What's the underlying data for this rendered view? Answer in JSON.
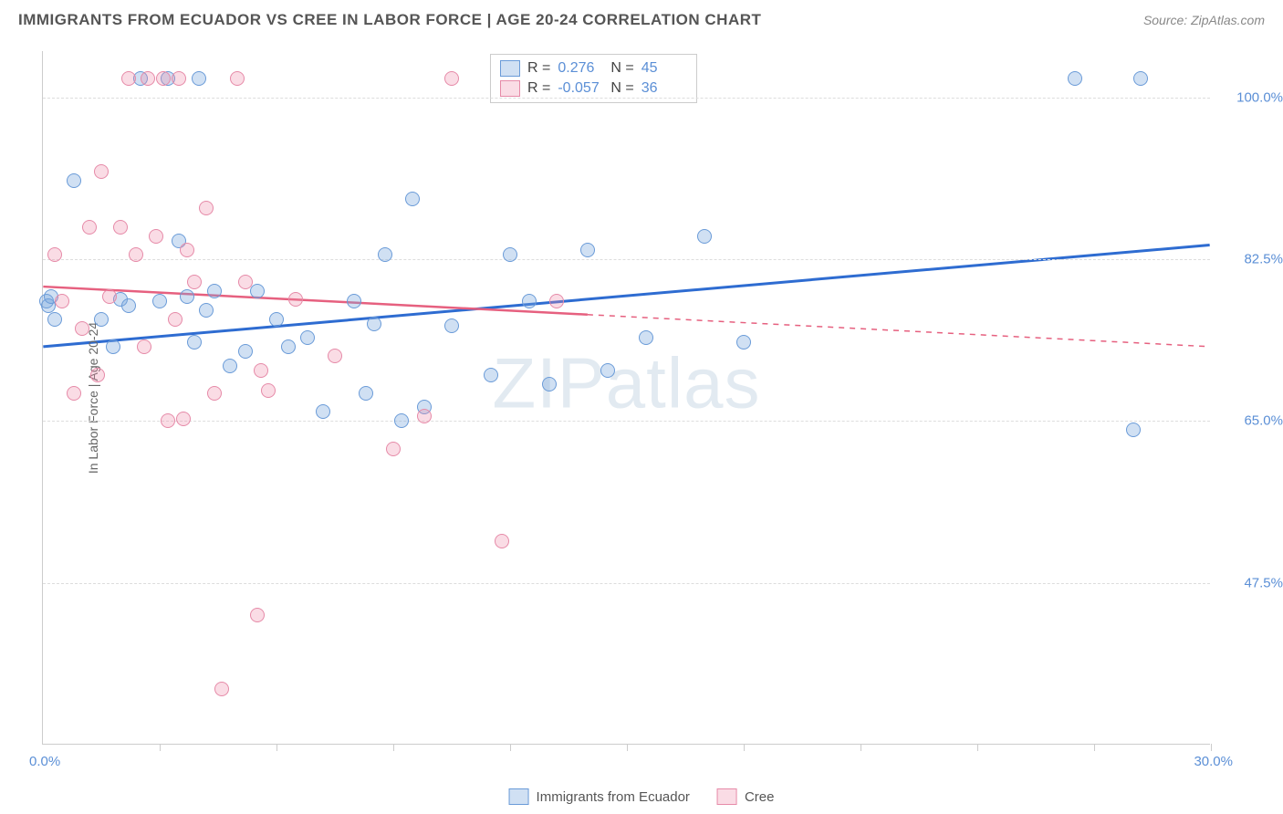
{
  "title": "IMMIGRANTS FROM ECUADOR VS CREE IN LABOR FORCE | AGE 20-24 CORRELATION CHART",
  "source": "Source: ZipAtlas.com",
  "watermark": "ZIPatlas",
  "y_axis_label": "In Labor Force | Age 20-24",
  "chart": {
    "type": "scatter",
    "background_color": "#ffffff",
    "grid_color": "#dddddd",
    "axis_color": "#cccccc",
    "xlim": [
      0,
      30
    ],
    "ylim": [
      30,
      105
    ],
    "x_min_label": "0.0%",
    "x_max_label": "30.0%",
    "y_ticks": [
      {
        "value": 47.5,
        "label": "47.5%"
      },
      {
        "value": 65.0,
        "label": "65.0%"
      },
      {
        "value": 82.5,
        "label": "82.5%"
      },
      {
        "value": 100.0,
        "label": "100.0%"
      }
    ],
    "x_tick_positions": [
      3,
      6,
      9,
      12,
      15,
      18,
      21,
      24,
      27,
      30
    ],
    "marker_radius": 8,
    "series": [
      {
        "name": "Immigrants from Ecuador",
        "fill": "rgba(120,165,220,0.35)",
        "stroke": "#6a9bd8",
        "trend_color": "#2e6cd1",
        "trend_width": 3,
        "R": "0.276",
        "N": "45",
        "trend": {
          "x1": 0,
          "y1": 73,
          "x2": 30,
          "y2": 84,
          "dash_from_x": 30
        },
        "points": [
          [
            0.1,
            78
          ],
          [
            0.15,
            77.5
          ],
          [
            0.2,
            78.5
          ],
          [
            0.3,
            76
          ],
          [
            0.8,
            91
          ],
          [
            1.5,
            76
          ],
          [
            1.8,
            73
          ],
          [
            2.0,
            78.2
          ],
          [
            2.2,
            77.5
          ],
          [
            2.5,
            102
          ],
          [
            3.0,
            78
          ],
          [
            3.2,
            102
          ],
          [
            3.5,
            84.5
          ],
          [
            3.7,
            78.5
          ],
          [
            3.9,
            73.5
          ],
          [
            4.0,
            102
          ],
          [
            4.2,
            77
          ],
          [
            4.4,
            79
          ],
          [
            4.8,
            71
          ],
          [
            5.2,
            72.5
          ],
          [
            5.5,
            79
          ],
          [
            6.0,
            76
          ],
          [
            6.3,
            73
          ],
          [
            6.8,
            74
          ],
          [
            7.2,
            66
          ],
          [
            8.0,
            78
          ],
          [
            8.3,
            68
          ],
          [
            8.5,
            75.5
          ],
          [
            8.8,
            83
          ],
          [
            9.2,
            65
          ],
          [
            9.5,
            89
          ],
          [
            9.8,
            66.5
          ],
          [
            10.5,
            75.3
          ],
          [
            11.5,
            70
          ],
          [
            12.0,
            83
          ],
          [
            12.5,
            78
          ],
          [
            13.0,
            69
          ],
          [
            14.0,
            83.5
          ],
          [
            14.5,
            70.5
          ],
          [
            15.5,
            74
          ],
          [
            17.0,
            85
          ],
          [
            18.0,
            73.5
          ],
          [
            26.5,
            102
          ],
          [
            28.0,
            64
          ],
          [
            28.2,
            102
          ]
        ]
      },
      {
        "name": "Cree",
        "fill": "rgba(240,140,170,0.30)",
        "stroke": "#e68aa8",
        "trend_color": "#e6607f",
        "trend_width": 2.5,
        "R": "-0.057",
        "N": "36",
        "trend": {
          "x1": 0,
          "y1": 79.5,
          "x2": 30,
          "y2": 73,
          "dash_from_x": 14
        },
        "points": [
          [
            0.3,
            83
          ],
          [
            0.5,
            78
          ],
          [
            0.8,
            68
          ],
          [
            1.0,
            75
          ],
          [
            1.2,
            86
          ],
          [
            1.4,
            70
          ],
          [
            1.5,
            92
          ],
          [
            1.7,
            78.5
          ],
          [
            2.0,
            86
          ],
          [
            2.2,
            102
          ],
          [
            2.4,
            83
          ],
          [
            2.6,
            73
          ],
          [
            2.7,
            102
          ],
          [
            2.9,
            85
          ],
          [
            3.1,
            102
          ],
          [
            3.2,
            65
          ],
          [
            3.4,
            76
          ],
          [
            3.5,
            102
          ],
          [
            3.6,
            65.2
          ],
          [
            3.7,
            83.5
          ],
          [
            3.9,
            80
          ],
          [
            4.2,
            88
          ],
          [
            4.4,
            68
          ],
          [
            4.6,
            36
          ],
          [
            5.0,
            102
          ],
          [
            5.2,
            80
          ],
          [
            5.5,
            44
          ],
          [
            5.6,
            70.5
          ],
          [
            5.8,
            68.3
          ],
          [
            6.5,
            78.2
          ],
          [
            7.5,
            72
          ],
          [
            9.0,
            62
          ],
          [
            9.8,
            65.5
          ],
          [
            10.5,
            102
          ],
          [
            11.8,
            52
          ],
          [
            13.2,
            78
          ]
        ]
      }
    ]
  },
  "legend": {
    "stats_label_R": "R =",
    "stats_label_N": "N =",
    "value_color": "#5b8fd6"
  }
}
